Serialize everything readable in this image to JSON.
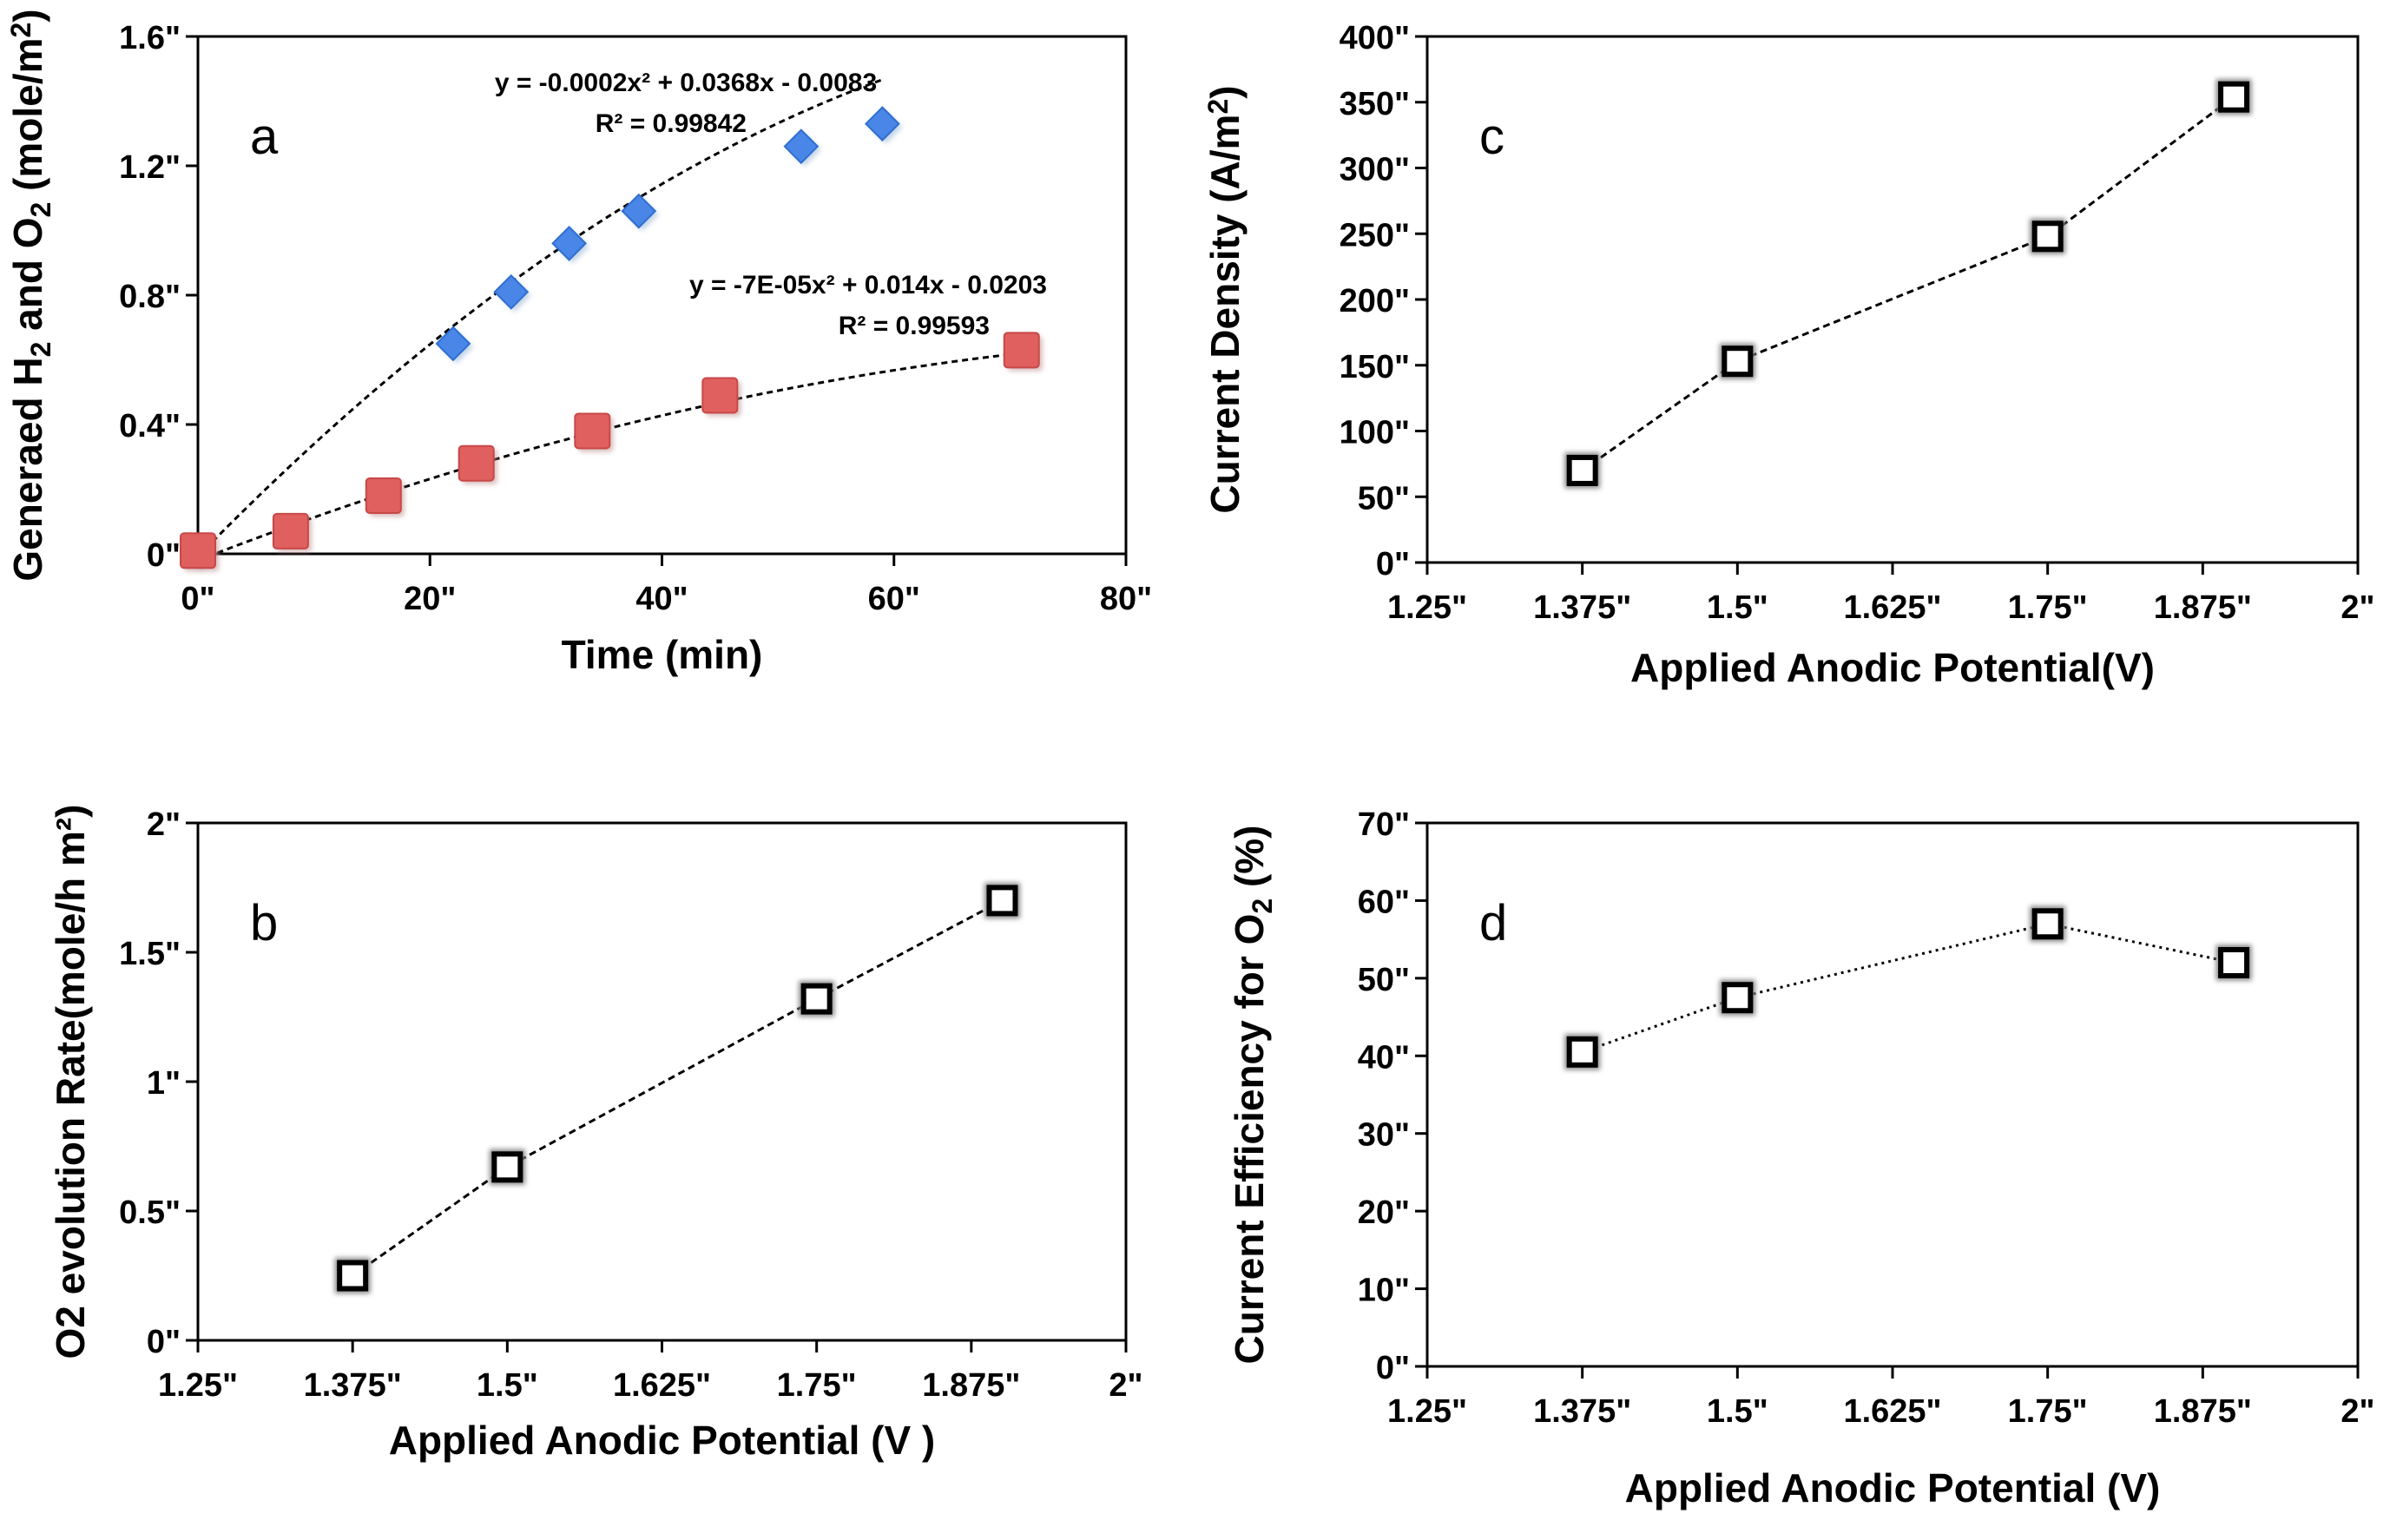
{
  "chart_data": [
    {
      "id": "a",
      "type": "scatter",
      "panel_label": "a",
      "xlabel": "Time (min)",
      "ylabel_parts": [
        "Generaed H",
        "2",
        " and O",
        "2",
        " (mole/m",
        "2",
        ")"
      ],
      "xlim": [
        0,
        80
      ],
      "ylim": [
        0,
        1.6
      ],
      "x_ticks": [
        0,
        20,
        40,
        60,
        80
      ],
      "x_tick_labels": [
        "0\"",
        "20\"",
        "40\"",
        "60\"",
        "80\""
      ],
      "y_ticks": [
        0,
        0.4,
        0.8,
        1.2,
        1.6
      ],
      "y_tick_labels": [
        "0\"",
        "0.4\"",
        "0.8\"",
        "1.2\"",
        "1.6\""
      ],
      "series": [
        {
          "name": "H2",
          "marker": "diamond",
          "color": "#4a86e8",
          "x": [
            0,
            22,
            27,
            32,
            38,
            52,
            59
          ],
          "y": [
            0.01,
            0.65,
            0.81,
            0.96,
            1.06,
            1.26,
            1.33
          ],
          "trend": {
            "a": -0.0002,
            "b": 0.0368,
            "c": -0.0083,
            "x_range": [
              0,
              59
            ]
          },
          "equation": "y = -0.0002x² + 0.0368x - 0.0083",
          "r2": "R² = 0.99842"
        },
        {
          "name": "O2",
          "marker": "square",
          "color": "#e06060",
          "x": [
            0,
            8,
            16,
            24,
            34,
            45,
            71
          ],
          "y": [
            0.01,
            0.07,
            0.18,
            0.28,
            0.38,
            0.49,
            0.63
          ],
          "trend": {
            "a": -7e-05,
            "b": 0.014,
            "c": -0.0203,
            "x_range": [
              0,
              71
            ]
          },
          "equation": "y = -7E-05x² + 0.014x - 0.0203",
          "r2": "R² = 0.99593"
        }
      ]
    },
    {
      "id": "b",
      "type": "line",
      "panel_label": "b",
      "xlabel": "Applied Anodic Potential (V )",
      "ylabel": "O2 evolution Rate(mole/h m²)",
      "xlim": [
        1.25,
        2
      ],
      "ylim": [
        0,
        2
      ],
      "x_ticks": [
        1.25,
        1.375,
        1.5,
        1.625,
        1.75,
        1.875,
        2
      ],
      "x_tick_labels": [
        "1.25\"",
        "1.375\"",
        "1.5\"",
        "1.625\"",
        "1.75\"",
        "1.875\"",
        "2\""
      ],
      "y_ticks": [
        0,
        0.5,
        1,
        1.5,
        2
      ],
      "y_tick_labels": [
        "0\"",
        "0.5\"",
        "1\"",
        "1.5\"",
        "2\""
      ],
      "series": [
        {
          "name": "O2 evolution rate",
          "marker": "open-square",
          "x": [
            1.375,
            1.5,
            1.75,
            1.9
          ],
          "y": [
            0.25,
            0.67,
            1.32,
            1.7
          ]
        }
      ]
    },
    {
      "id": "c",
      "type": "line",
      "panel_label": "c",
      "xlabel": "Applied Anodic Potential(V)",
      "ylabel_parts": [
        "Current Density (A/m",
        "2",
        ")"
      ],
      "xlim": [
        1.25,
        2
      ],
      "ylim": [
        0,
        400
      ],
      "x_ticks": [
        1.25,
        1.375,
        1.5,
        1.625,
        1.75,
        1.875,
        2
      ],
      "x_tick_labels": [
        "1.25\"",
        "1.375\"",
        "1.5\"",
        "1.625\"",
        "1.75\"",
        "1.875\"",
        "2\""
      ],
      "y_ticks": [
        0,
        50,
        100,
        150,
        200,
        250,
        300,
        350,
        400
      ],
      "y_tick_labels": [
        "0\"",
        "50\"",
        "100\"",
        "150\"",
        "200\"",
        "250\"",
        "300\"",
        "350\"",
        "400\""
      ],
      "series": [
        {
          "name": "Current density",
          "marker": "open-square",
          "x": [
            1.375,
            1.5,
            1.75,
            1.9
          ],
          "y": [
            70,
            153,
            248,
            354
          ]
        }
      ]
    },
    {
      "id": "d",
      "type": "line",
      "panel_label": "d",
      "xlabel": "Applied Anodic Potential (V)",
      "ylabel_parts": [
        "Current Efficiency for O",
        "2",
        " (%)"
      ],
      "xlim": [
        1.25,
        2
      ],
      "ylim": [
        0,
        70
      ],
      "x_ticks": [
        1.25,
        1.375,
        1.5,
        1.625,
        1.75,
        1.875,
        2
      ],
      "x_tick_labels": [
        "1.25\"",
        "1.375\"",
        "1.5\"",
        "1.625\"",
        "1.75\"",
        "1.875\"",
        "2\""
      ],
      "y_ticks": [
        0,
        10,
        20,
        30,
        40,
        50,
        60,
        70
      ],
      "y_tick_labels": [
        "0\"",
        "10\"",
        "20\"",
        "30\"",
        "40\"",
        "50\"",
        "60\"",
        "70\""
      ],
      "series": [
        {
          "name": "Current efficiency",
          "marker": "open-square",
          "dotted": true,
          "x": [
            1.375,
            1.5,
            1.75,
            1.9
          ],
          "y": [
            40.5,
            47.5,
            57,
            52
          ]
        }
      ]
    }
  ]
}
